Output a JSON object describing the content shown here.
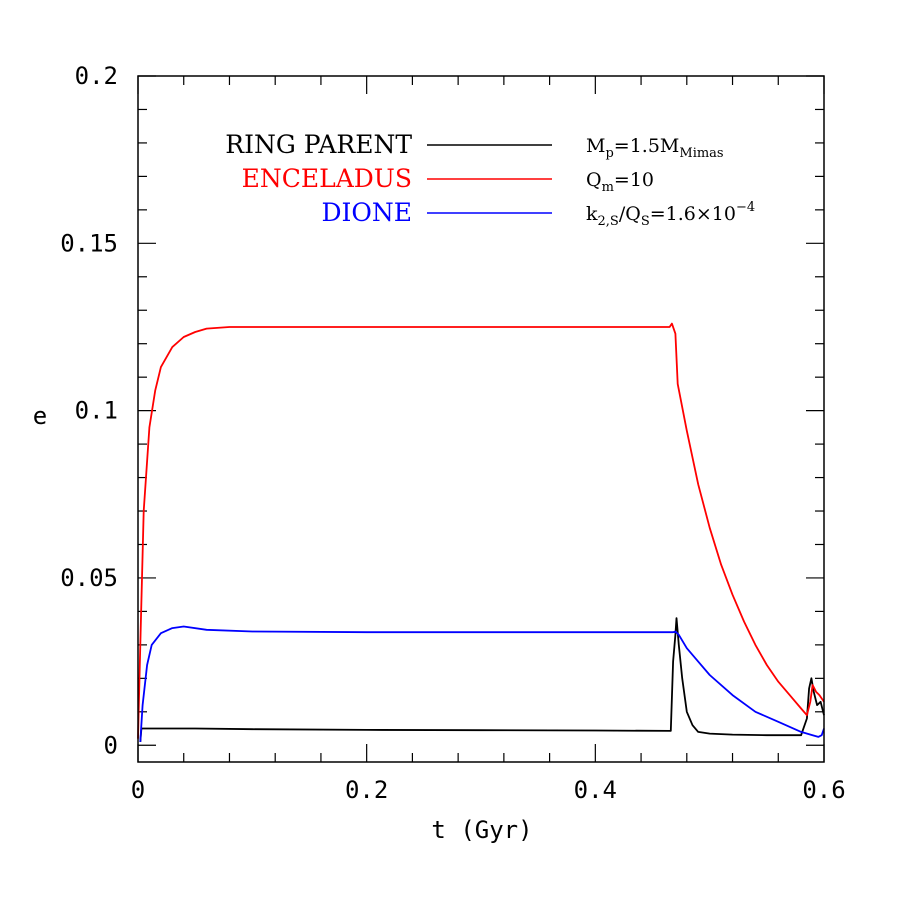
{
  "chart_data": {
    "type": "line",
    "xlabel": "t (Gyr)",
    "ylabel": "e",
    "xlim": [
      0,
      0.6
    ],
    "ylim": [
      -0.005,
      0.2
    ],
    "xticks": [
      0,
      0.2,
      0.4,
      0.6
    ],
    "xtick_labels": [
      "0",
      "0.2",
      "0.4",
      "0.6"
    ],
    "yticks": [
      0,
      0.05,
      0.1,
      0.15,
      0.2
    ],
    "ytick_labels": [
      "0",
      "0.05",
      "0.1",
      "0.15",
      "0.2"
    ],
    "grid": false,
    "legend_position": "top-left",
    "series": [
      {
        "name": "RING PARENT",
        "color": "#000000",
        "x": [
          0.002,
          0.003,
          0.05,
          0.1,
          0.2,
          0.3,
          0.4,
          0.466,
          0.468,
          0.47,
          0.471,
          0.473,
          0.476,
          0.48,
          0.485,
          0.49,
          0.5,
          0.52,
          0.55,
          0.58,
          0.585,
          0.587,
          0.589,
          0.591,
          0.594,
          0.597,
          0.6
        ],
        "y": [
          0.001,
          0.005,
          0.005,
          0.0048,
          0.0046,
          0.0045,
          0.0044,
          0.0043,
          0.025,
          0.033,
          0.038,
          0.03,
          0.02,
          0.01,
          0.006,
          0.004,
          0.0035,
          0.0032,
          0.003,
          0.003,
          0.008,
          0.017,
          0.02,
          0.016,
          0.012,
          0.013,
          0.009
        ]
      },
      {
        "name": "ENCELADUS",
        "color": "#ff0000",
        "x": [
          0,
          0.002,
          0.005,
          0.01,
          0.015,
          0.02,
          0.03,
          0.04,
          0.05,
          0.06,
          0.08,
          0.1,
          0.2,
          0.3,
          0.4,
          0.465,
          0.467,
          0.47,
          0.472,
          0.48,
          0.49,
          0.5,
          0.51,
          0.52,
          0.53,
          0.54,
          0.55,
          0.56,
          0.57,
          0.58,
          0.585,
          0.588,
          0.59,
          0.593,
          0.596,
          0.6
        ],
        "y": [
          0.002,
          0.03,
          0.07,
          0.095,
          0.106,
          0.113,
          0.119,
          0.122,
          0.1235,
          0.1245,
          0.125,
          0.125,
          0.125,
          0.125,
          0.125,
          0.125,
          0.126,
          0.123,
          0.108,
          0.094,
          0.078,
          0.065,
          0.054,
          0.045,
          0.037,
          0.03,
          0.024,
          0.019,
          0.015,
          0.011,
          0.009,
          0.013,
          0.018,
          0.016,
          0.015,
          0.013
        ]
      },
      {
        "name": "DIONE",
        "color": "#0000ff",
        "x": [
          0.002,
          0.004,
          0.008,
          0.012,
          0.02,
          0.03,
          0.04,
          0.06,
          0.1,
          0.2,
          0.3,
          0.4,
          0.468,
          0.47,
          0.473,
          0.48,
          0.49,
          0.5,
          0.52,
          0.54,
          0.56,
          0.58,
          0.59,
          0.595,
          0.598,
          0.6
        ],
        "y": [
          0.001,
          0.012,
          0.024,
          0.03,
          0.0335,
          0.035,
          0.0355,
          0.0345,
          0.034,
          0.0338,
          0.0338,
          0.0338,
          0.0338,
          0.034,
          0.033,
          0.029,
          0.025,
          0.021,
          0.015,
          0.01,
          0.007,
          0.004,
          0.003,
          0.0025,
          0.003,
          0.005
        ]
      }
    ],
    "annotations": {
      "mp": {
        "main": "M",
        "sub1": "p",
        "rest": "=1.5M",
        "sub2": "Mimas"
      },
      "qm": {
        "main": "Q",
        "sub1": "m",
        "rest": "=10"
      },
      "k2": {
        "main": "k",
        "sub1": "2,S",
        "mid": "/Q",
        "sub2": "S",
        "rest": "=1.6×10",
        "sup": "−4"
      }
    }
  }
}
